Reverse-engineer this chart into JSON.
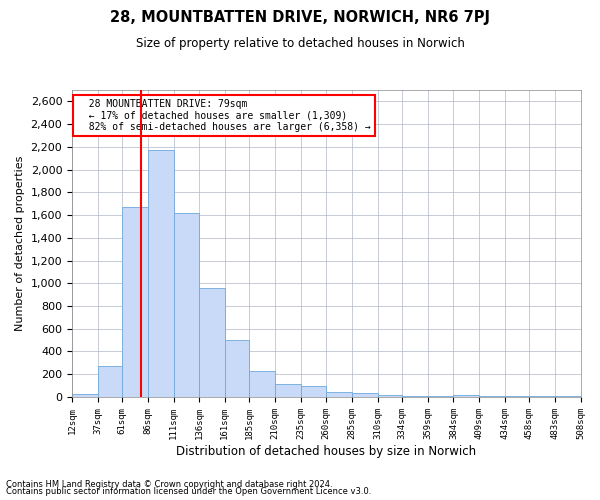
{
  "title1": "28, MOUNTBATTEN DRIVE, NORWICH, NR6 7PJ",
  "title2": "Size of property relative to detached houses in Norwich",
  "xlabel": "Distribution of detached houses by size in Norwich",
  "ylabel": "Number of detached properties",
  "annotation_line1": "28 MOUNTBATTEN DRIVE: 79sqm",
  "annotation_line2": "← 17% of detached houses are smaller (1,309)",
  "annotation_line3": "82% of semi-detached houses are larger (6,358) →",
  "property_size": 79,
  "bar_color": "#c9daf8",
  "bar_edge_color": "#6fa8dc",
  "vline_color": "red",
  "grid_color": "#b0b8c8",
  "background_color": "#ffffff",
  "footnote1": "Contains HM Land Registry data © Crown copyright and database right 2024.",
  "footnote2": "Contains public sector information licensed under the Open Government Licence v3.0.",
  "bin_edges": [
    12,
    37,
    61,
    86,
    111,
    136,
    161,
    185,
    210,
    235,
    260,
    285,
    310,
    334,
    359,
    384,
    409,
    434,
    458,
    483,
    508
  ],
  "counts": [
    25,
    270,
    1670,
    2175,
    1620,
    960,
    500,
    230,
    115,
    95,
    40,
    35,
    20,
    10,
    5,
    20,
    5,
    5,
    5,
    5
  ],
  "ylim": [
    0,
    2700
  ],
  "yticks": [
    0,
    200,
    400,
    600,
    800,
    1000,
    1200,
    1400,
    1600,
    1800,
    2000,
    2200,
    2400,
    2600
  ]
}
